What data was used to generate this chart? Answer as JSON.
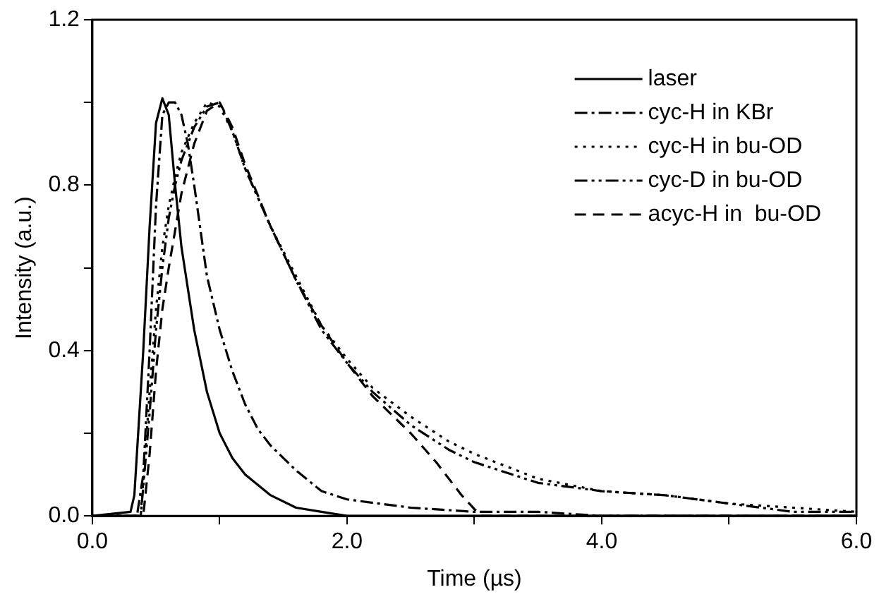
{
  "chart_data": {
    "type": "line",
    "xlabel": "Time (µs)",
    "ylabel": "Intensity (a.u.)",
    "xlim": [
      0,
      6
    ],
    "xticks": [
      {
        "value": 0,
        "label": "0.0"
      },
      {
        "value": 1,
        "label": null
      },
      {
        "value": 2,
        "label": "2.0"
      },
      {
        "value": 3,
        "label": null
      },
      {
        "value": 4,
        "label": "4.0"
      },
      {
        "value": 5,
        "label": null
      },
      {
        "value": 6,
        "label": "6.0"
      }
    ],
    "ylim": [
      0,
      1.2
    ],
    "yticks": [
      {
        "value": 0,
        "label": "0.0"
      },
      {
        "value": 0.2,
        "label": null
      },
      {
        "value": 0.4,
        "label": "0.4"
      },
      {
        "value": 0.6,
        "label": null
      },
      {
        "value": 0.8,
        "label": "0.8"
      },
      {
        "value": 1.0,
        "label": null
      },
      {
        "value": 1.2,
        "label": "1.2"
      }
    ],
    "grid": false,
    "legend": "top right",
    "marker": "none",
    "series": [
      {
        "name": "laser",
        "color": "#000000",
        "line_style": "solid",
        "x": [
          0,
          0.3,
          0.33,
          0.4,
          0.45,
          0.5,
          0.55,
          0.6,
          0.65,
          0.7,
          0.8,
          0.9,
          1.0,
          1.1,
          1.2,
          1.4,
          1.6,
          1.8,
          2.0,
          3,
          4,
          5,
          6
        ],
        "values": [
          0,
          0.01,
          0.05,
          0.4,
          0.7,
          0.95,
          1.01,
          0.97,
          0.8,
          0.65,
          0.45,
          0.3,
          0.2,
          0.14,
          0.1,
          0.05,
          0.02,
          0.01,
          0,
          0,
          0,
          0,
          0
        ]
      },
      {
        "name": "cyc-H in KBr",
        "color": "#000000",
        "line_style": "dashdot",
        "x": [
          0,
          0.35,
          0.4,
          0.45,
          0.5,
          0.55,
          0.6,
          0.65,
          0.7,
          0.75,
          0.8,
          0.9,
          1.0,
          1.1,
          1.2,
          1.3,
          1.4,
          1.6,
          1.8,
          2.0,
          2.5,
          3.0,
          3.5,
          4,
          5,
          6
        ],
        "values": [
          0,
          0,
          0.1,
          0.4,
          0.75,
          0.97,
          1.0,
          1.0,
          0.97,
          0.9,
          0.8,
          0.58,
          0.45,
          0.35,
          0.27,
          0.21,
          0.17,
          0.11,
          0.06,
          0.04,
          0.02,
          0.01,
          0.01,
          0,
          0,
          0
        ]
      },
      {
        "name": "cyc-H in bu-OD",
        "color": "#000000",
        "line_style": "dotted",
        "x": [
          0,
          0.38,
          0.45,
          0.5,
          0.55,
          0.6,
          0.65,
          0.7,
          0.8,
          0.9,
          1.0,
          1.1,
          1.2,
          1.4,
          1.6,
          1.8,
          2.0,
          2.2,
          2.5,
          2.8,
          3.0,
          3.5,
          4.0,
          4.5,
          5.0,
          5.5,
          6.0
        ],
        "values": [
          0,
          0,
          0.3,
          0.5,
          0.65,
          0.75,
          0.82,
          0.88,
          0.95,
          1.0,
          0.99,
          0.93,
          0.84,
          0.7,
          0.58,
          0.46,
          0.38,
          0.31,
          0.24,
          0.18,
          0.15,
          0.09,
          0.06,
          0.05,
          0.03,
          0.02,
          0.01
        ]
      },
      {
        "name": "cyc-D in bu-OD",
        "color": "#000000",
        "line_style": "dashdotdot",
        "x": [
          0,
          0.38,
          0.45,
          0.5,
          0.55,
          0.6,
          0.65,
          0.7,
          0.8,
          0.9,
          1.0,
          1.1,
          1.2,
          1.4,
          1.6,
          1.8,
          2.0,
          2.2,
          2.5,
          2.8,
          3.0,
          3.5,
          4.0,
          4.5,
          5.0,
          5.5,
          6.0
        ],
        "values": [
          0,
          0,
          0.25,
          0.45,
          0.6,
          0.72,
          0.8,
          0.86,
          0.94,
          0.99,
          1.0,
          0.93,
          0.84,
          0.7,
          0.57,
          0.45,
          0.37,
          0.3,
          0.22,
          0.16,
          0.13,
          0.08,
          0.06,
          0.05,
          0.03,
          0.01,
          0.01
        ]
      },
      {
        "name": "acyc-H in  bu-OD",
        "color": "#000000",
        "line_style": "dashed",
        "x": [
          0,
          0.4,
          0.45,
          0.5,
          0.55,
          0.6,
          0.7,
          0.8,
          0.9,
          1.0,
          1.1,
          1.2,
          1.4,
          1.6,
          1.8,
          2.0,
          2.2,
          2.5,
          2.7,
          2.9,
          3.05,
          3.5,
          4,
          5,
          6
        ],
        "values": [
          0,
          0,
          0.15,
          0.35,
          0.5,
          0.6,
          0.78,
          0.9,
          0.98,
          1.0,
          0.94,
          0.85,
          0.7,
          0.57,
          0.46,
          0.37,
          0.29,
          0.2,
          0.13,
          0.05,
          0,
          0,
          0,
          0,
          0
        ]
      }
    ]
  }
}
